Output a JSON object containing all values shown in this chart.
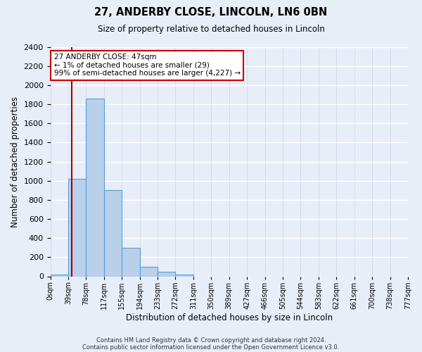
{
  "title_line1": "27, ANDERBY CLOSE, LINCOLN, LN6 0BN",
  "title_line2": "Size of property relative to detached houses in Lincoln",
  "xlabel": "Distribution of detached houses by size in Lincoln",
  "ylabel": "Number of detached properties",
  "bin_labels": [
    "0sqm",
    "39sqm",
    "78sqm",
    "117sqm",
    "155sqm",
    "194sqm",
    "233sqm",
    "272sqm",
    "311sqm",
    "350sqm",
    "389sqm",
    "427sqm",
    "466sqm",
    "505sqm",
    "544sqm",
    "583sqm",
    "622sqm",
    "661sqm",
    "700sqm",
    "738sqm",
    "777sqm"
  ],
  "bar_values": [
    20,
    1020,
    1860,
    900,
    300,
    100,
    45,
    20,
    0,
    0,
    0,
    0,
    0,
    0,
    0,
    0,
    0,
    0,
    0,
    0
  ],
  "bar_color": "#b8d0ea",
  "bar_edge_color": "#5b9bd5",
  "vline_x_bin": 1,
  "vline_color": "#aa0000",
  "ylim_max": 2400,
  "yticks": [
    0,
    200,
    400,
    600,
    800,
    1000,
    1200,
    1400,
    1600,
    1800,
    2000,
    2200,
    2400
  ],
  "annotation_line1": "27 ANDERBY CLOSE: 47sqm",
  "annotation_line2": "← 1% of detached houses are smaller (29)",
  "annotation_line3": "99% of semi-detached houses are larger (4,227) →",
  "annotation_box_facecolor": "#ffffff",
  "annotation_box_edgecolor": "#cc0000",
  "footer_line1": "Contains HM Land Registry data © Crown copyright and database right 2024.",
  "footer_line2": "Contains public sector information licensed under the Open Government Licence v3.0.",
  "background_color": "#e8eef8",
  "plot_bg_color": "#e8eef8",
  "bin_width": 39
}
